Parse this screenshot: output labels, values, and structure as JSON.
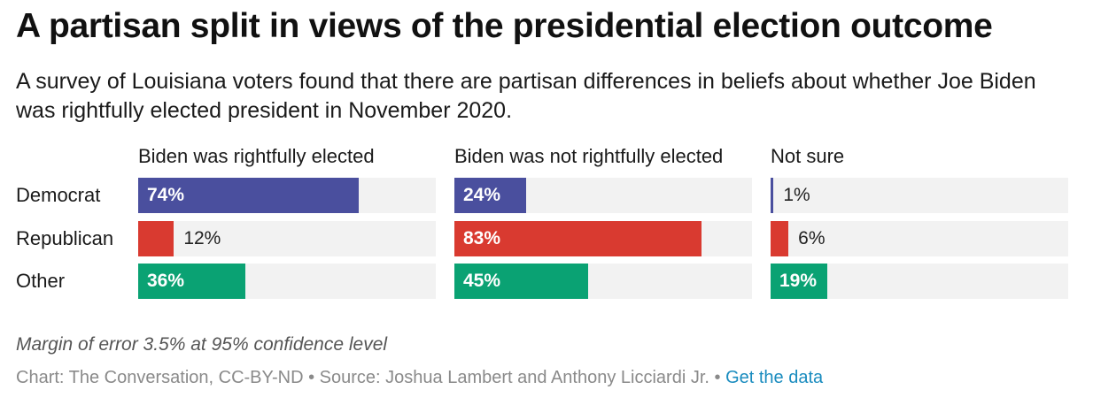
{
  "header": {
    "title": "A partisan split in views of the presidential election outcome",
    "subtitle": "A survey of Louisiana voters found that there are partisan differences in beliefs about whether Joe Biden was rightfully elected president in November 2020."
  },
  "colors": {
    "Democrat": "#4a4f9e",
    "Republican": "#d93a30",
    "Other": "#0aa273",
    "track": "#f2f2f2"
  },
  "chart_data": {
    "type": "bar",
    "orientation": "horizontal",
    "layout": "small-multiples",
    "title": "A partisan split in views of the presidential election outcome",
    "categories": [
      "Democrat",
      "Republican",
      "Other"
    ],
    "series": [
      {
        "name": "Biden was rightfully elected",
        "values": [
          74,
          12,
          36
        ]
      },
      {
        "name": "Biden was not rightfully elected",
        "values": [
          24,
          83,
          45
        ]
      },
      {
        "name": "Not sure",
        "values": [
          1,
          6,
          19
        ]
      }
    ],
    "unit": "%",
    "xlim": [
      0,
      100
    ],
    "grid": false
  },
  "footer": {
    "note": "Margin of error 3.5% at 95% confidence level",
    "credit": "Chart: The Conversation, CC-BY-ND • Source: Joshua Lambert and Anthony Licciardi Jr. • ",
    "link_label": "Get the data"
  }
}
